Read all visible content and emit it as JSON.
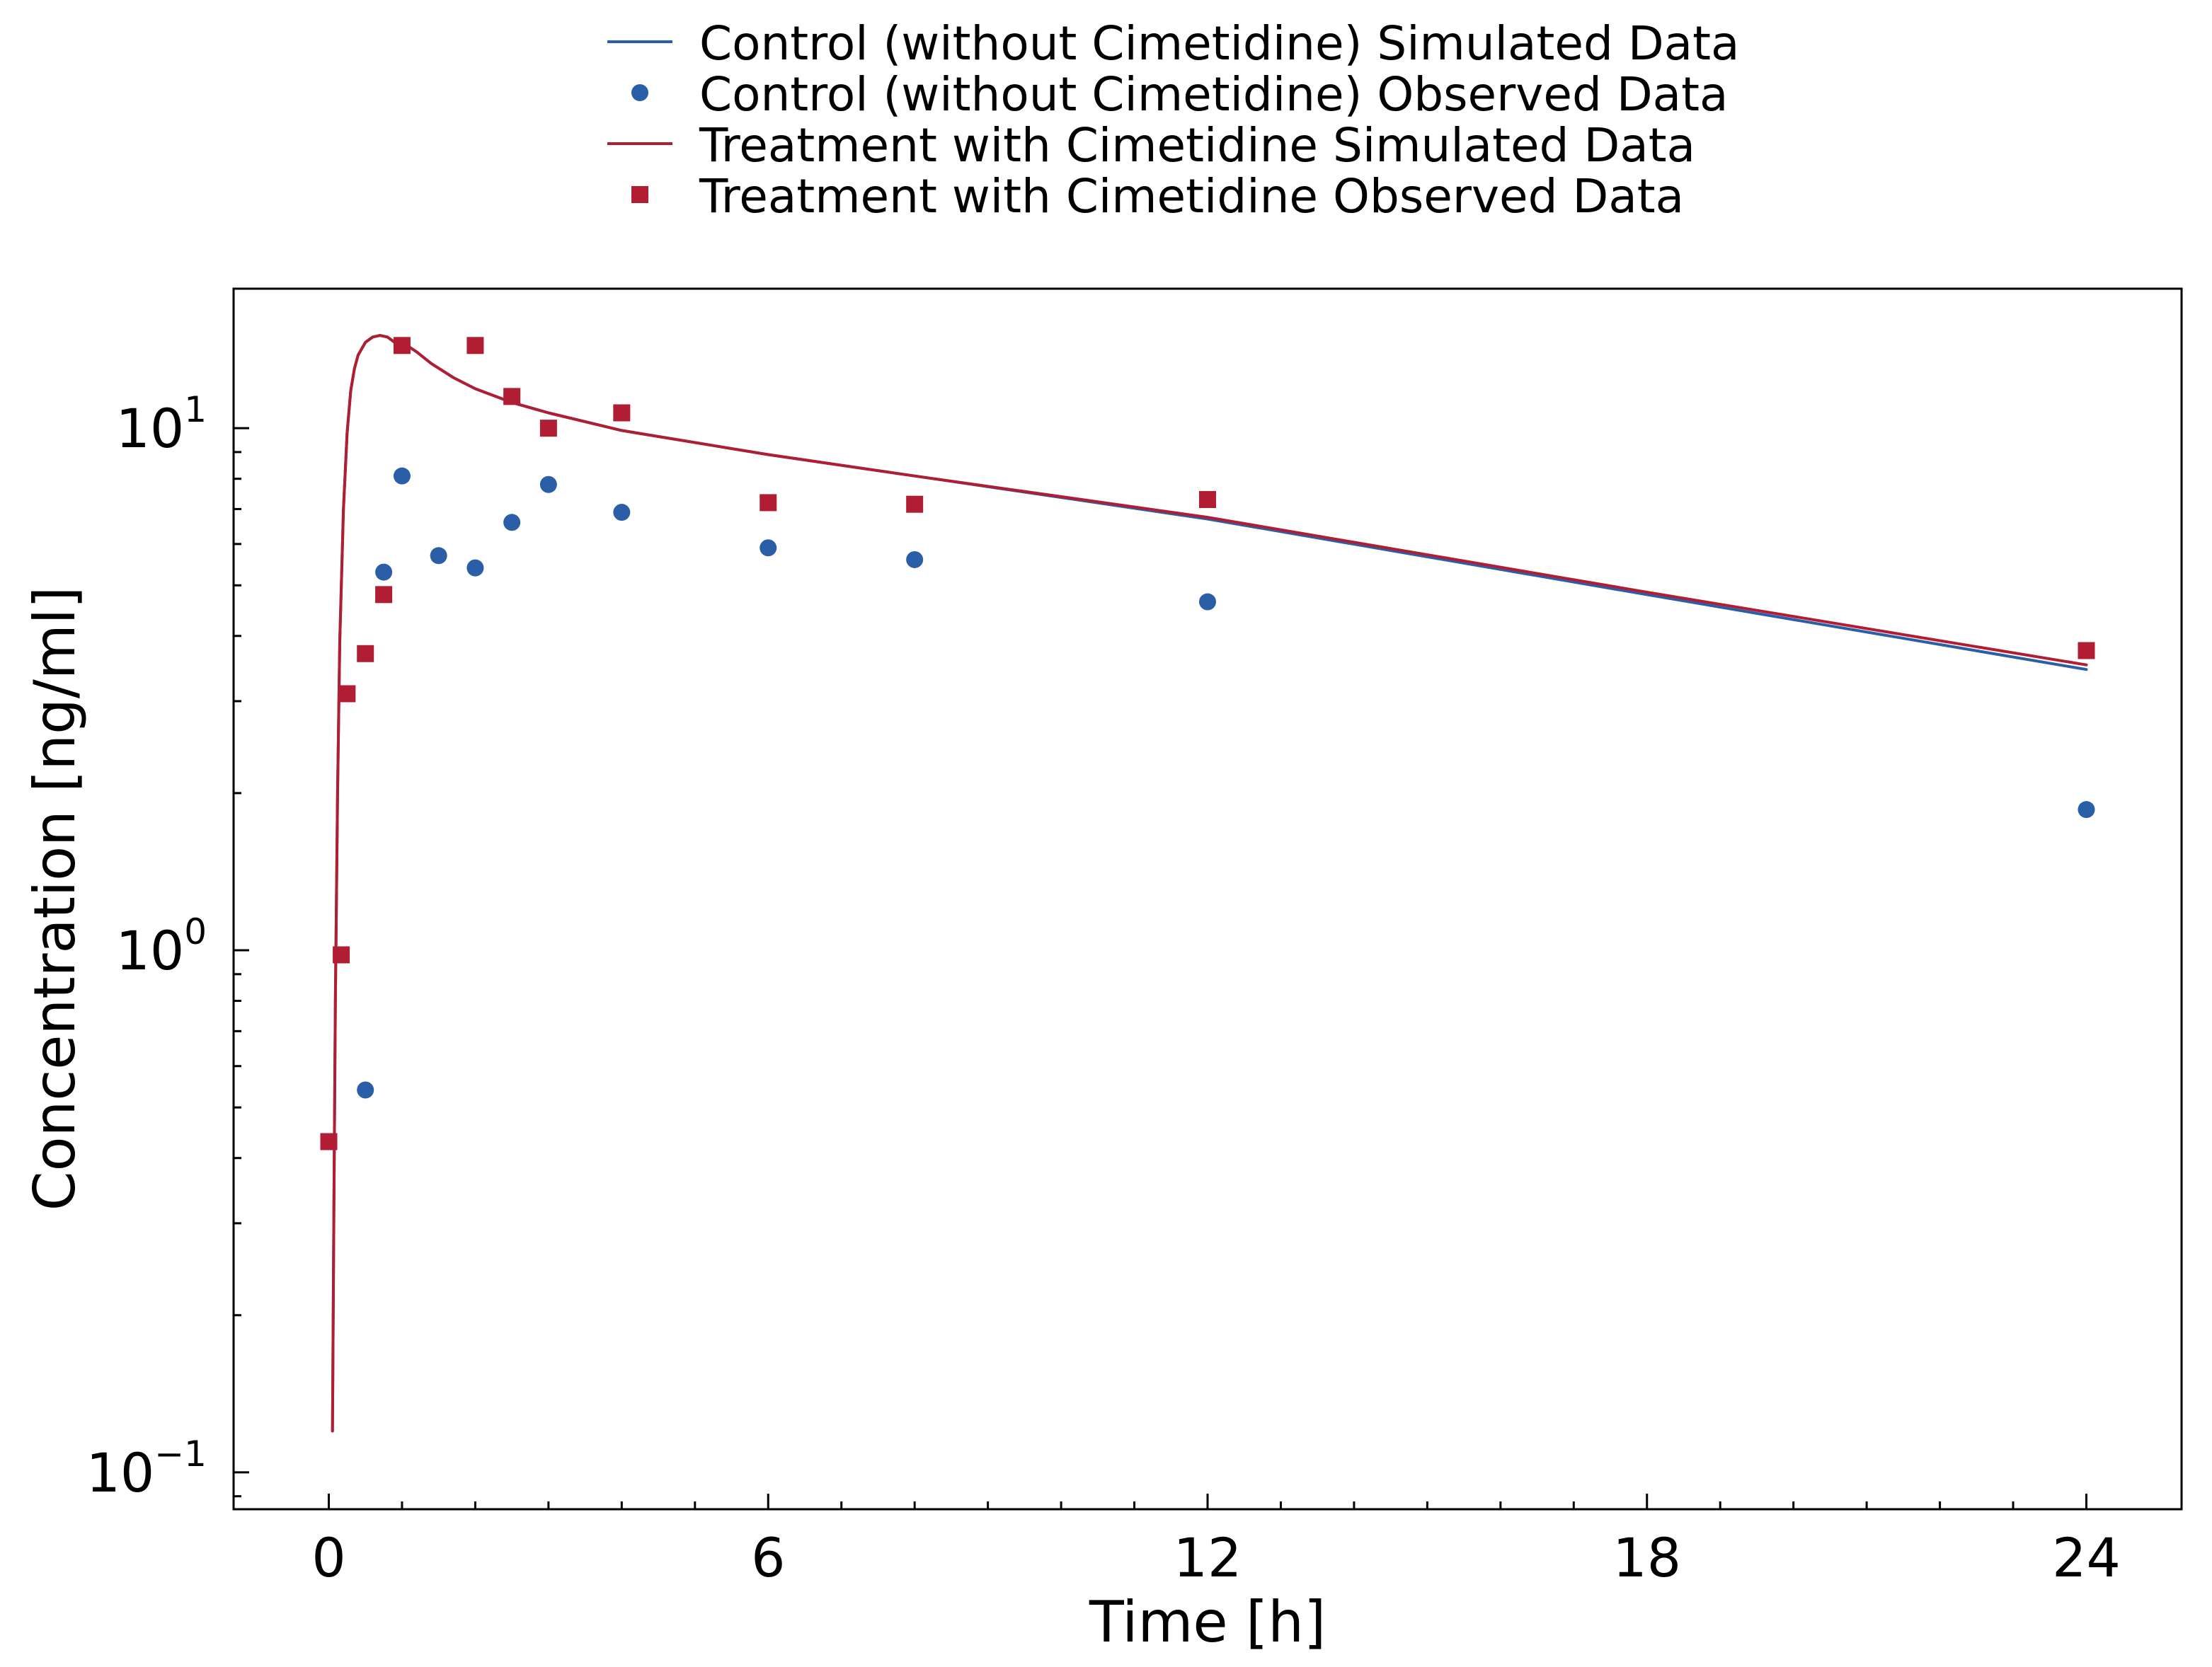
{
  "chart_data": {
    "type": "scatter",
    "xlabel": "Time [h]",
    "ylabel": "Concentration [ng/ml]",
    "xlim": [
      -1.3,
      25.3
    ],
    "ylim": [
      0.085,
      18.5
    ],
    "y_scale": "log",
    "x_ticks": [
      0,
      6,
      12,
      18,
      24
    ],
    "x_tick_labels": [
      "0",
      "6",
      "12",
      "18",
      "24"
    ],
    "y_ticks": [
      0.1,
      1,
      10
    ],
    "y_tick_labels": [
      {
        "base": "10",
        "exp": "−1"
      },
      {
        "base": "10",
        "exp": "0"
      },
      {
        "base": "10",
        "exp": "1"
      }
    ],
    "grid": false,
    "legend_position": "top-center",
    "series": [
      {
        "name": "Control (without Cimetidine) Simulated Data",
        "kind": "line",
        "color": "#2a5ea6",
        "x": [
          0.05,
          0.07,
          0.09,
          0.12,
          0.15,
          0.2,
          0.25,
          0.3,
          0.35,
          0.4,
          0.5,
          0.6,
          0.7,
          0.8,
          0.9,
          1.0,
          1.1,
          1.2,
          1.4,
          1.7,
          2.0,
          2.5,
          3.0,
          4.0,
          6.0,
          8.0,
          12.0,
          18.0,
          24.0
        ],
        "y": [
          0.12,
          0.32,
          0.8,
          2.0,
          3.9,
          7.0,
          9.8,
          11.8,
          13.0,
          13.8,
          14.6,
          14.95,
          15.05,
          14.95,
          14.6,
          14.5,
          14.3,
          14.0,
          13.3,
          12.5,
          11.9,
          11.2,
          10.7,
          9.9,
          8.9,
          8.1,
          6.7,
          4.8,
          3.45
        ]
      },
      {
        "name": "Control (without Cimetidine) Observed Data",
        "kind": "scatter",
        "marker": "circle",
        "color": "#2a5ea6",
        "x": [
          0.5,
          0.75,
          1.0,
          1.5,
          2.0,
          2.5,
          3.0,
          4.0,
          6.0,
          8.0,
          12.0,
          24.0
        ],
        "y": [
          0.54,
          5.3,
          8.1,
          5.7,
          5.4,
          6.6,
          7.8,
          6.9,
          5.9,
          5.6,
          4.65,
          1.86
        ]
      },
      {
        "name": "Treatment with Cimetidine Simulated Data",
        "kind": "line",
        "color": "#b11e33",
        "x": [
          0.05,
          0.07,
          0.09,
          0.12,
          0.15,
          0.2,
          0.25,
          0.3,
          0.35,
          0.4,
          0.5,
          0.6,
          0.7,
          0.8,
          0.9,
          1.0,
          1.1,
          1.2,
          1.4,
          1.7,
          2.0,
          2.5,
          3.0,
          4.0,
          6.0,
          8.0,
          12.0,
          18.0,
          24.0
        ],
        "y": [
          0.12,
          0.32,
          0.8,
          2.0,
          3.9,
          7.0,
          9.8,
          11.8,
          13.0,
          13.8,
          14.6,
          14.95,
          15.05,
          14.95,
          14.6,
          14.5,
          14.3,
          14.0,
          13.3,
          12.5,
          11.9,
          11.2,
          10.7,
          9.9,
          8.9,
          8.1,
          6.75,
          4.85,
          3.52
        ]
      },
      {
        "name": "Treatment with Cimetidine Observed Data",
        "kind": "scatter",
        "marker": "square",
        "color": "#b11e33",
        "x": [
          0.0,
          0.17,
          0.25,
          0.5,
          0.75,
          1.0,
          2.0,
          2.5,
          3.0,
          4.0,
          6.0,
          8.0,
          12.0,
          24.0
        ],
        "y": [
          0.43,
          0.98,
          3.1,
          3.7,
          4.8,
          14.4,
          14.4,
          11.5,
          10.0,
          10.7,
          7.2,
          7.15,
          7.3,
          3.75
        ]
      }
    ]
  }
}
